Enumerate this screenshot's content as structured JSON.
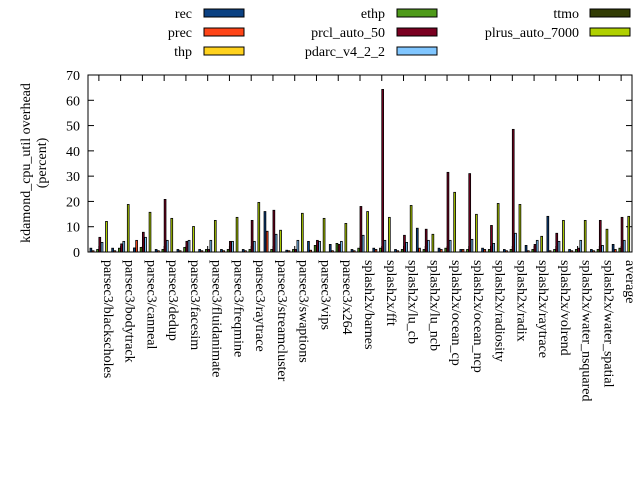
{
  "chart_data": {
    "type": "bar",
    "title": "",
    "xlabel": "",
    "ylabel": "kdamond_cpu_util overhead",
    "ylabel2": "(percent)",
    "ylim": [
      0,
      70
    ],
    "yticks": [
      0,
      10,
      20,
      30,
      40,
      50,
      60,
      70
    ],
    "legend_placement": "top",
    "categories": [
      "parsec3/blackscholes",
      "parsec3/bodytrack",
      "parsec3/canneal",
      "parsec3/dedup",
      "parsec3/facesim",
      "parsec3/fluidanimate",
      "parsec3/freqmine",
      "parsec3/raytrace",
      "parsec3/streamcluster",
      "parsec3/swaptions",
      "parsec3/vips",
      "parsec3/x264",
      "splash2x/barnes",
      "splash2x/fft",
      "splash2x/lu_cb",
      "splash2x/lu_ncb",
      "splash2x/ocean_cp",
      "splash2x/ocean_ncp",
      "splash2x/radiosity",
      "splash2x/radix",
      "splash2x/raytrace",
      "splash2x/volrend",
      "splash2x/water_nsquared",
      "splash2x/water_spatial",
      "average"
    ],
    "series": [
      {
        "name": "rec",
        "color": "#0b4182",
        "values": [
          1.5,
          1.5,
          1.6,
          1,
          1,
          1,
          1,
          1,
          16,
          0.7,
          4.2,
          3,
          1,
          1.5,
          1,
          9.4,
          1.5,
          1,
          1.5,
          1,
          2.6,
          14.1,
          1,
          1,
          3
        ]
      },
      {
        "name": "prec",
        "color": "#ff4518",
        "values": [
          0.5,
          0.5,
          4.6,
          0.5,
          0.5,
          0.5,
          0.5,
          0.5,
          8.2,
          0.5,
          0.7,
          0.5,
          0.5,
          1,
          0.5,
          1.5,
          1,
          1,
          1,
          0.5,
          0.5,
          0.5,
          0.5,
          0.5,
          1
        ]
      },
      {
        "name": "thp",
        "color": "#ffd21e",
        "values": [
          0,
          0,
          0,
          0,
          0,
          0,
          0,
          0,
          0,
          0,
          0,
          0,
          0,
          0,
          0,
          0,
          0,
          0,
          0,
          0,
          0,
          0,
          0,
          0,
          0
        ]
      },
      {
        "name": "ethp",
        "color": "#4e9a1a",
        "values": [
          1,
          1.5,
          1.8,
          1,
          1.8,
          1,
          1,
          1,
          1,
          1,
          2.6,
          3.4,
          1.5,
          1.5,
          1,
          1,
          1.5,
          1,
          1,
          1,
          1,
          1,
          1,
          1,
          1.5
        ]
      },
      {
        "name": "prcl_auto_50",
        "color": "#7a0021",
        "values": [
          5.8,
          3.2,
          7.8,
          20.8,
          4.2,
          1,
          4.2,
          12.5,
          16.5,
          1,
          4.6,
          3,
          18,
          64.3,
          6.6,
          9,
          31.5,
          31,
          10.5,
          48.5,
          3,
          7.4,
          1.5,
          12.5,
          13.7
        ]
      },
      {
        "name": "pdarc_v4_2_2",
        "color": "#80c6ff",
        "values": [
          3.8,
          4.2,
          5.8,
          4.6,
          4.6,
          4.6,
          4.2,
          4.2,
          7,
          4.6,
          4.2,
          4.2,
          6.6,
          4.6,
          3.8,
          4.6,
          4.6,
          5,
          3.4,
          7.4,
          4.6,
          4.2,
          4.6,
          2.6,
          4.6
        ]
      },
      {
        "name": "ttmo",
        "color": "#323c04",
        "values": [
          0,
          0,
          0,
          0,
          0,
          0,
          0,
          0,
          0,
          0,
          0,
          0,
          0,
          0,
          0,
          0,
          0,
          0,
          0,
          0,
          0,
          0,
          0,
          0,
          0
        ]
      },
      {
        "name": "plrus_auto_7000",
        "color": "#b0d000",
        "values": [
          12.1,
          18.8,
          15.7,
          13.3,
          10.1,
          12.5,
          13.7,
          19.6,
          8.6,
          15.3,
          13.3,
          11.3,
          16,
          13.7,
          18.4,
          7,
          23.6,
          14.9,
          19.2,
          18.8,
          6.2,
          12.5,
          12.5,
          9,
          14.1
        ]
      }
    ]
  }
}
